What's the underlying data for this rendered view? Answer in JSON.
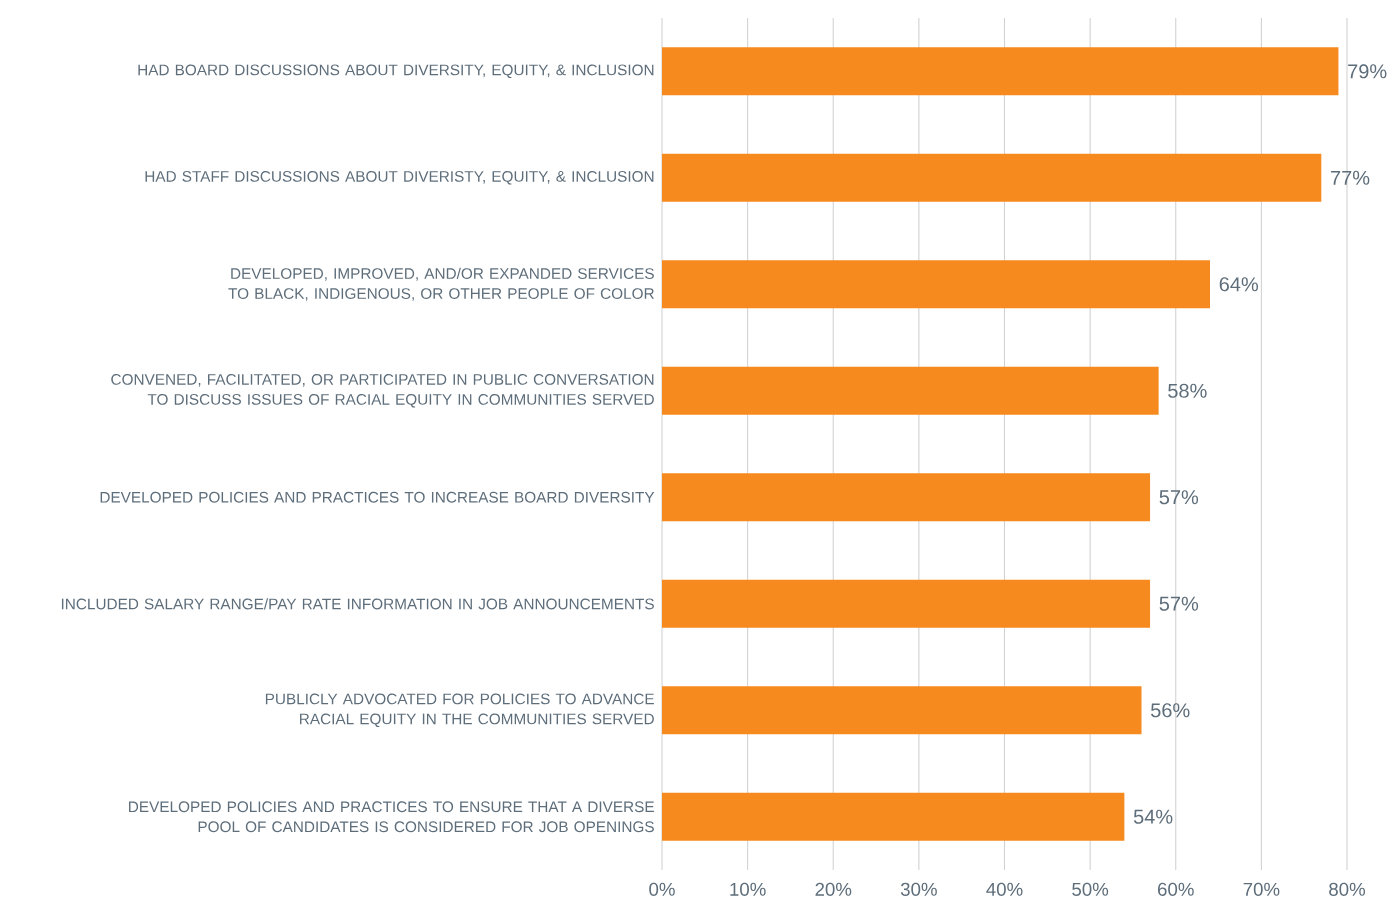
{
  "chart_data": {
    "type": "bar",
    "orientation": "horizontal",
    "categories": [
      "HAD BOARD DISCUSSIONS ABOUT DIVERSITY, EQUITY, & INCLUSION",
      "HAD STAFF DISCUSSIONS ABOUT DIVERISTY, EQUITY, & INCLUSION",
      "DEVELOPED, IMPROVED, AND/OR EXPANDED SERVICES TO BLACK, INDIGENOUS, OR OTHER PEOPLE OF COLOR",
      "CONVENED, FACILITATED, OR PARTICIPATED IN PUBLIC CONVERSATION TO DISCUSS ISSUES OF RACIAL EQUITY IN COMMUNITIES SERVED",
      "DEVELOPED POLICIES AND PRACTICES TO INCREASE BOARD DIVERSITY",
      "INCLUDED SALARY RANGE/PAY RATE INFORMATION IN JOB ANNOUNCEMENTS",
      "PUBLICLY ADVOCATED FOR POLICIES TO ADVANCE RACIAL EQUITY IN THE COMMUNITIES SERVED",
      "DEVELOPED POLICIES AND PRACTICES TO ENSURE THAT A DIVERSE POOL OF CANDIDATES IS CONSIDERED FOR JOB OPENINGS"
    ],
    "values": [
      79,
      77,
      64,
      58,
      57,
      57,
      56,
      54
    ],
    "value_labels": [
      "79%",
      "77%",
      "64%",
      "58%",
      "57%",
      "57%",
      "56%",
      "54%"
    ],
    "color": "#f68a1e",
    "xlim": [
      0,
      80
    ],
    "xticks": [
      {
        "value": 0,
        "label": "0%"
      },
      {
        "value": 10,
        "label": "10%"
      },
      {
        "value": 20,
        "label": "20%"
      },
      {
        "value": 30,
        "label": "30%"
      },
      {
        "value": 40,
        "label": "40%"
      },
      {
        "value": 50,
        "label": "50%"
      },
      {
        "value": 60,
        "label": "60%"
      },
      {
        "value": 70,
        "label": "70%"
      },
      {
        "value": 80,
        "label": "80%"
      }
    ],
    "grid": "x"
  }
}
